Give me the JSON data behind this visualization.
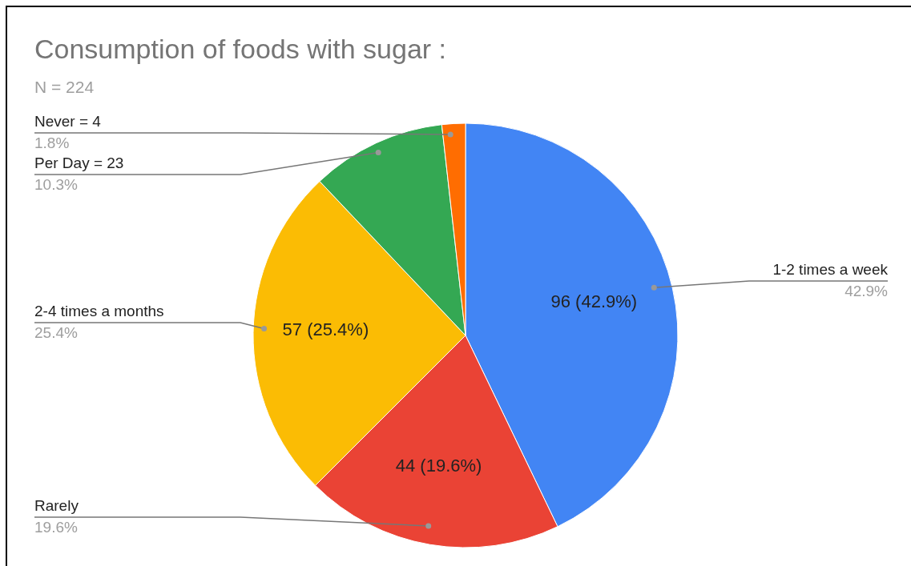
{
  "chart_data": {
    "type": "pie",
    "title": "Consumption of foods with sugar :",
    "subtitle": "N = 224",
    "categories": [
      "1-2 times a week",
      "Rarely",
      "2-4 times a months",
      "Per Day = 23",
      "Never = 4"
    ],
    "values": [
      96,
      44,
      57,
      23,
      4
    ],
    "colors": [
      "#4285f4",
      "#ea4335",
      "#fbbc04",
      "#34a853",
      "#ff6d01"
    ],
    "value_labels": [
      "96 (42.9%)",
      "44 (19.6%)",
      "57 (25.4%)",
      null,
      null
    ],
    "annotations": [
      "42.9%",
      "19.6%",
      "25.4%",
      "10.3%",
      "1.8%"
    ]
  }
}
